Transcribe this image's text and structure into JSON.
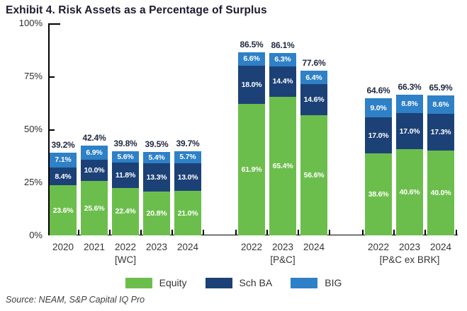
{
  "title": "Exhibit 4. Risk Assets as a Percentage of Surplus",
  "source": "Source: NEAM, S&P Capital IQ Pro",
  "colors": {
    "equity": "#6cbe4c",
    "sch_ba": "#1c4177",
    "big": "#2e80c7",
    "axis": "#000000",
    "title_text": "#1b1b2f"
  },
  "chart_data": {
    "type": "bar",
    "stacked": true,
    "title": "Exhibit 4. Risk Assets as a Percentage of Surplus",
    "ylabel": "",
    "xlabel": "",
    "ylim": [
      0,
      100
    ],
    "y_tick_labels": [
      "100%",
      "75%",
      "50%",
      "25%",
      "0%"
    ],
    "grid": false,
    "legend": [
      "Equity",
      "Sch BA",
      "BIG"
    ],
    "legend_position": "bottom",
    "value_label_format": "one-decimal-percent",
    "groups": [
      {
        "label": "[WC]",
        "categories": [
          "2020",
          "2021",
          "2022",
          "2023",
          "2024"
        ],
        "series": [
          {
            "name": "Equity",
            "values": [
              23.6,
              25.6,
              22.4,
              20.8,
              21.0
            ]
          },
          {
            "name": "Sch BA",
            "values": [
              8.4,
              10.0,
              11.8,
              13.3,
              13.0
            ]
          },
          {
            "name": "BIG",
            "values": [
              7.1,
              6.9,
              5.6,
              5.4,
              5.7
            ]
          }
        ],
        "totals": [
          39.2,
          42.4,
          39.8,
          39.5,
          39.7
        ]
      },
      {
        "label": "[P&C]",
        "categories": [
          "2022",
          "2023",
          "2024"
        ],
        "series": [
          {
            "name": "Equity",
            "values": [
              61.9,
              65.4,
              56.6
            ]
          },
          {
            "name": "Sch BA",
            "values": [
              18.0,
              14.4,
              14.6
            ]
          },
          {
            "name": "BIG",
            "values": [
              6.6,
              6.3,
              6.4
            ]
          }
        ],
        "totals": [
          86.5,
          86.1,
          77.6
        ]
      },
      {
        "label": "[P&C ex BRK]",
        "categories": [
          "2022",
          "2023",
          "2024"
        ],
        "series": [
          {
            "name": "Equity",
            "values": [
              38.6,
              40.6,
              40.0
            ]
          },
          {
            "name": "Sch BA",
            "values": [
              17.0,
              17.0,
              17.3
            ]
          },
          {
            "name": "BIG",
            "values": [
              9.0,
              8.8,
              8.6
            ]
          }
        ],
        "totals": [
          64.6,
          66.3,
          65.9
        ]
      }
    ]
  }
}
